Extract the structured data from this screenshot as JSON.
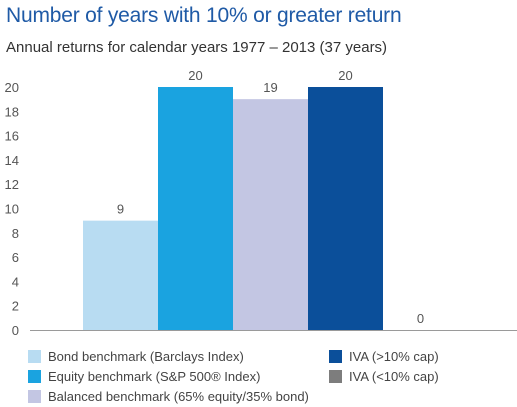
{
  "chart_data": {
    "type": "bar",
    "title": "Number of years with 10% or greater return",
    "subtitle": "Annual returns for calendar years 1977 – 2013 (37 years)",
    "ylim": [
      0,
      20
    ],
    "yticks": [
      0,
      2,
      4,
      6,
      8,
      10,
      12,
      14,
      16,
      18,
      20
    ],
    "grid": false,
    "legend_position": "bottom",
    "series": [
      {
        "name": "Bond benchmark (Barclays Index)",
        "value": 9,
        "label": "9",
        "color": "#b8dcf2"
      },
      {
        "name": "Equity benchmark (S&P 500® Index)",
        "value": 20,
        "label": "20",
        "color": "#1aa3e0"
      },
      {
        "name": "Balanced benchmark (65% equity/35% bond)",
        "value": 19,
        "label": "19",
        "color": "#c3c6e3"
      },
      {
        "name": "IVA (>10% cap)",
        "value": 20,
        "label": "20",
        "color": "#0b4f9a"
      },
      {
        "name": "IVA (<10% cap)",
        "value": 0,
        "label": "0",
        "color": "#7d7d7d"
      }
    ]
  }
}
